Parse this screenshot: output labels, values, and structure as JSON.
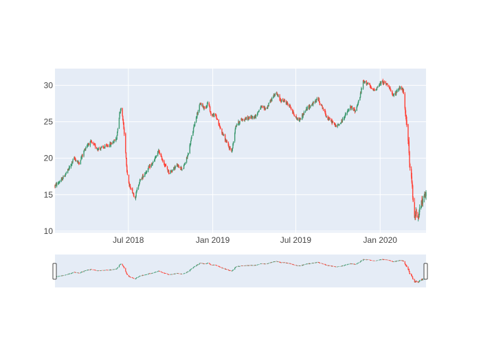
{
  "chart_data": {
    "type": "candlestick",
    "x_ticks": [
      "Jul 2018",
      "Jan 2019",
      "Jul 2019",
      "Jan 2020"
    ],
    "y_ticks": [
      10,
      15,
      20,
      25,
      30
    ],
    "ylim": [
      9.8,
      32.3
    ],
    "x_range": [
      "2018-01-22",
      "2020-04-10"
    ],
    "grid": true,
    "range_slider": true,
    "colors": {
      "increasing": "#3D9970",
      "decreasing": "#FF4136",
      "plot_bg": "#E5ECF6",
      "grid": "#ffffff",
      "tick_text": "#444444"
    },
    "price_path": [
      [
        "2018-01-22",
        16.2
      ],
      [
        "2018-02-05",
        17.0
      ],
      [
        "2018-02-20",
        18.4
      ],
      [
        "2018-03-05",
        20.0
      ],
      [
        "2018-03-15",
        19.3
      ],
      [
        "2018-04-01",
        21.8
      ],
      [
        "2018-04-10",
        22.2
      ],
      [
        "2018-04-25",
        21.3
      ],
      [
        "2018-05-10",
        21.5
      ],
      [
        "2018-05-25",
        22.0
      ],
      [
        "2018-06-05",
        22.7
      ],
      [
        "2018-06-12",
        26.2
      ],
      [
        "2018-06-15",
        27.0
      ],
      [
        "2018-06-20",
        24.8
      ],
      [
        "2018-06-25",
        21.0
      ],
      [
        "2018-06-28",
        18.3
      ],
      [
        "2018-07-03",
        16.2
      ],
      [
        "2018-07-08",
        15.8
      ],
      [
        "2018-07-15",
        14.5
      ],
      [
        "2018-07-25",
        16.8
      ],
      [
        "2018-08-10",
        18.3
      ],
      [
        "2018-08-25",
        19.5
      ],
      [
        "2018-09-05",
        21.0
      ],
      [
        "2018-09-15",
        19.5
      ],
      [
        "2018-09-28",
        18.0
      ],
      [
        "2018-10-15",
        19.0
      ],
      [
        "2018-10-28",
        18.5
      ],
      [
        "2018-11-08",
        20.5
      ],
      [
        "2018-11-18",
        23.5
      ],
      [
        "2018-11-25",
        25.5
      ],
      [
        "2018-12-05",
        27.5
      ],
      [
        "2018-12-15",
        26.8
      ],
      [
        "2018-12-22",
        27.8
      ],
      [
        "2018-12-28",
        26.0
      ],
      [
        "2019-01-08",
        25.8
      ],
      [
        "2019-01-15",
        24.5
      ],
      [
        "2019-01-25",
        23.0
      ],
      [
        "2019-02-05",
        21.5
      ],
      [
        "2019-02-12",
        21.0
      ],
      [
        "2019-02-20",
        24.5
      ],
      [
        "2019-03-05",
        25.3
      ],
      [
        "2019-03-20",
        25.5
      ],
      [
        "2019-04-05",
        25.8
      ],
      [
        "2019-04-15",
        27.0
      ],
      [
        "2019-04-28",
        26.8
      ],
      [
        "2019-05-08",
        28.0
      ],
      [
        "2019-05-18",
        29.0
      ],
      [
        "2019-05-28",
        28.0
      ],
      [
        "2019-06-08",
        27.8
      ],
      [
        "2019-06-20",
        27.0
      ],
      [
        "2019-06-28",
        25.8
      ],
      [
        "2019-07-08",
        25.2
      ],
      [
        "2019-07-20",
        26.3
      ],
      [
        "2019-07-28",
        27.0
      ],
      [
        "2019-08-08",
        27.5
      ],
      [
        "2019-08-18",
        28.2
      ],
      [
        "2019-08-28",
        27.0
      ],
      [
        "2019-09-08",
        25.5
      ],
      [
        "2019-09-18",
        25.0
      ],
      [
        "2019-09-28",
        24.3
      ],
      [
        "2019-10-08",
        25.0
      ],
      [
        "2019-10-18",
        26.0
      ],
      [
        "2019-10-28",
        27.0
      ],
      [
        "2019-11-08",
        26.5
      ],
      [
        "2019-11-18",
        28.5
      ],
      [
        "2019-11-25",
        30.5
      ],
      [
        "2019-12-05",
        30.3
      ],
      [
        "2019-12-15",
        29.3
      ],
      [
        "2019-12-22",
        29.5
      ],
      [
        "2020-01-05",
        30.5
      ],
      [
        "2020-01-20",
        30.0
      ],
      [
        "2020-01-28",
        28.5
      ],
      [
        "2020-02-05",
        29.0
      ],
      [
        "2020-02-12",
        29.8
      ],
      [
        "2020-02-20",
        29.3
      ],
      [
        "2020-02-25",
        26.0
      ],
      [
        "2020-02-28",
        25.0
      ],
      [
        "2020-03-02",
        22.8
      ],
      [
        "2020-03-06",
        18.5
      ],
      [
        "2020-03-10",
        16.5
      ],
      [
        "2020-03-13",
        14.0
      ],
      [
        "2020-03-17",
        11.8
      ],
      [
        "2020-03-20",
        12.8
      ],
      [
        "2020-03-25",
        12.2
      ],
      [
        "2020-03-30",
        13.5
      ],
      [
        "2020-04-05",
        14.5
      ],
      [
        "2020-04-10",
        15.0
      ]
    ]
  }
}
